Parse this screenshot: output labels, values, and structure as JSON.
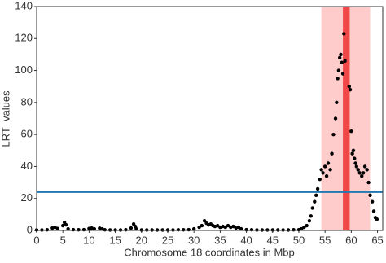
{
  "chart_data": {
    "type": "scatter",
    "xlabel": "Chromosome 18 coordinates in Mbp",
    "ylabel": "LRT_values",
    "x": [
      0,
      1,
      2,
      3,
      3.5,
      4,
      5,
      5.3,
      5.6,
      6,
      7,
      8,
      9,
      10,
      10.5,
      11,
      12,
      12.5,
      13,
      14,
      15,
      16,
      17,
      18,
      18.5,
      18.8,
      19,
      20,
      21,
      22,
      23,
      24,
      25,
      26,
      27,
      28,
      29,
      30,
      31,
      31.5,
      32,
      32.4,
      32.8,
      33.2,
      33.6,
      34,
      34.5,
      35,
      35.5,
      36,
      36.5,
      37,
      37.5,
      38,
      38.5,
      39,
      40,
      41,
      42,
      43,
      44,
      45,
      46,
      47,
      48,
      49,
      50,
      50.5,
      51,
      51.5,
      52,
      52.3,
      52.6,
      53,
      53.3,
      53.6,
      54,
      54.3,
      54.6,
      55,
      55.3,
      55.6,
      56,
      56.3,
      56.6,
      57,
      57.2,
      57.4,
      57.6,
      57.8,
      58,
      58.2,
      58.4,
      58.6,
      58.8,
      59.6,
      59.8,
      60,
      60.2,
      60.4,
      60.6,
      60.8,
      61,
      61.3,
      61.6,
      62,
      62.3,
      62.6,
      63,
      63.3,
      63.6,
      64,
      64.3,
      64.6,
      64.9
    ],
    "values": [
      0.3,
      0.3,
      0.4,
      1.5,
      2,
      1.2,
      3,
      5,
      3.5,
      1,
      0.5,
      0.4,
      0.5,
      1.2,
      1.5,
      1,
      1.4,
      1,
      0.4,
      0.3,
      0.3,
      0.3,
      0.4,
      1.5,
      4,
      2.5,
      1,
      0.3,
      0.3,
      0.3,
      0.3,
      0.3,
      0.3,
      0.3,
      0.4,
      0.4,
      0.5,
      1,
      2,
      3,
      6,
      4.5,
      3.5,
      4,
      3,
      2.5,
      3,
      2,
      2.5,
      2,
      3,
      2,
      2.5,
      1.5,
      2,
      1,
      0.5,
      0.4,
      0.3,
      0.3,
      0.3,
      0.3,
      0.3,
      0.3,
      0.3,
      0.4,
      0.5,
      1,
      2,
      3,
      6,
      9,
      14,
      18,
      22,
      26,
      32,
      38,
      36,
      40,
      34,
      42,
      38,
      48,
      60,
      70,
      80,
      95,
      100,
      108,
      110,
      105,
      98,
      123,
      106,
      90,
      88,
      62,
      48,
      50,
      45,
      42,
      40,
      38,
      36,
      34,
      36,
      40,
      38,
      30,
      22,
      18,
      12,
      8,
      7
    ],
    "color": "#000000",
    "spans": [
      {
        "start": 54.3,
        "end": 63.6,
        "color": "#ffcccc"
      },
      {
        "start": 58.4,
        "end": 59.7,
        "color": "#f04848"
      }
    ],
    "hline": {
      "value": 24,
      "color": "#1f77b4"
    },
    "xlim": [
      0,
      66
    ],
    "xticks": [
      0,
      5,
      10,
      15,
      20,
      25,
      30,
      35,
      40,
      45,
      50,
      55,
      60,
      65
    ],
    "ylim": [
      0,
      140
    ],
    "yticks": [
      0,
      20,
      40,
      60,
      80,
      100,
      120,
      140
    ],
    "grid": false
  }
}
